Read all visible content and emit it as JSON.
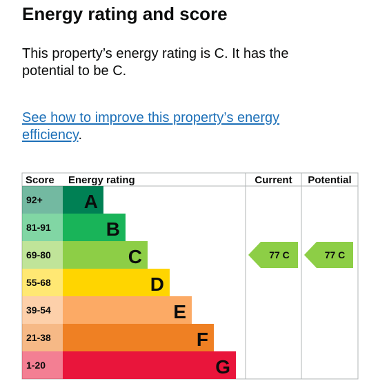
{
  "heading": "Energy rating and score",
  "summary": "This property’s energy rating is C. It has the potential to be C.",
  "improve_link": {
    "text": "See how to improve this property’s energy efficiency",
    "trailing": "."
  },
  "chart": {
    "columns": {
      "score": "Score",
      "rating": "Energy rating",
      "current": "Current",
      "potential": "Potential"
    },
    "bands": [
      {
        "score": "92+",
        "letter": "A",
        "color": "#008054"
      },
      {
        "score": "81-91",
        "letter": "B",
        "color": "#19b459"
      },
      {
        "score": "69-80",
        "letter": "C",
        "color": "#8dce46"
      },
      {
        "score": "55-68",
        "letter": "D",
        "color": "#ffd500"
      },
      {
        "score": "39-54",
        "letter": "E",
        "color": "#fcaa65"
      },
      {
        "score": "21-38",
        "letter": "F",
        "color": "#ef8023"
      },
      {
        "score": "1-20",
        "letter": "G",
        "color": "#e9153b"
      }
    ],
    "current": {
      "value": 77,
      "letter": "C",
      "label": "77  C",
      "color": "#8dce46"
    },
    "potential": {
      "value": 77,
      "letter": "C",
      "label": "77  C",
      "color": "#8dce46"
    }
  }
}
